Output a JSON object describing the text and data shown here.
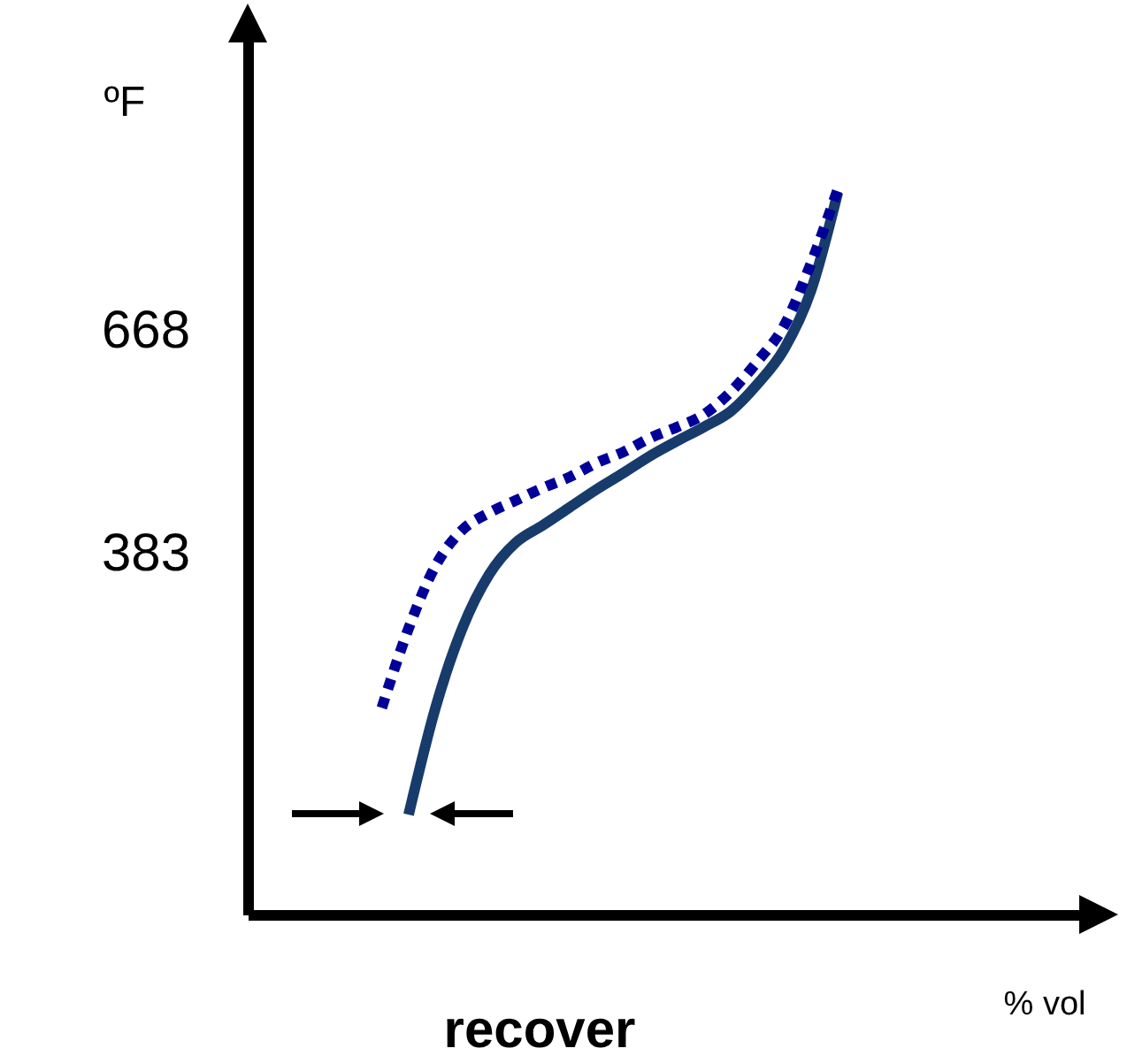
{
  "chart_data": {
    "type": "line",
    "ylabel": "ºF",
    "xlabel": "% vol",
    "annotations": [
      "recover"
    ],
    "categories": [
      null,
      null,
      null,
      null,
      null,
      null,
      null,
      null,
      null,
      null,
      null,
      null,
      null,
      null,
      null,
      null,
      null,
      null,
      null,
      null,
      null,
      null,
      null,
      null,
      null,
      null,
      null,
      null,
      null,
      null,
      null,
      null
    ],
    "series": [
      {
        "color": "#173c6b",
        "line_style": "solid",
        "values": [
          null,
          null,
          null,
          null,
          null,
          null,
          48,
          185,
          287,
          356,
          397,
          419,
          442,
          465,
          486,
          508,
          527,
          545,
          565,
          600,
          645,
          720,
          846,
          null,
          null,
          null,
          null,
          null,
          null,
          null,
          null,
          null
        ]
      },
      {
        "color": "#000099",
        "line_style": "dotted",
        "values": [
          null,
          null,
          null,
          null,
          null,
          185,
          287,
          367,
          413,
          435,
          451,
          467,
          481,
          499,
          513,
          531,
          545,
          561,
          590,
          629,
          675,
          755,
          850,
          null,
          null,
          null,
          null,
          null,
          null,
          null,
          null,
          null
        ]
      }
    ],
    "ylim": [
      -80,
      1070
    ],
    "yticks": [
      383,
      668
    ],
    "grid": false
  }
}
